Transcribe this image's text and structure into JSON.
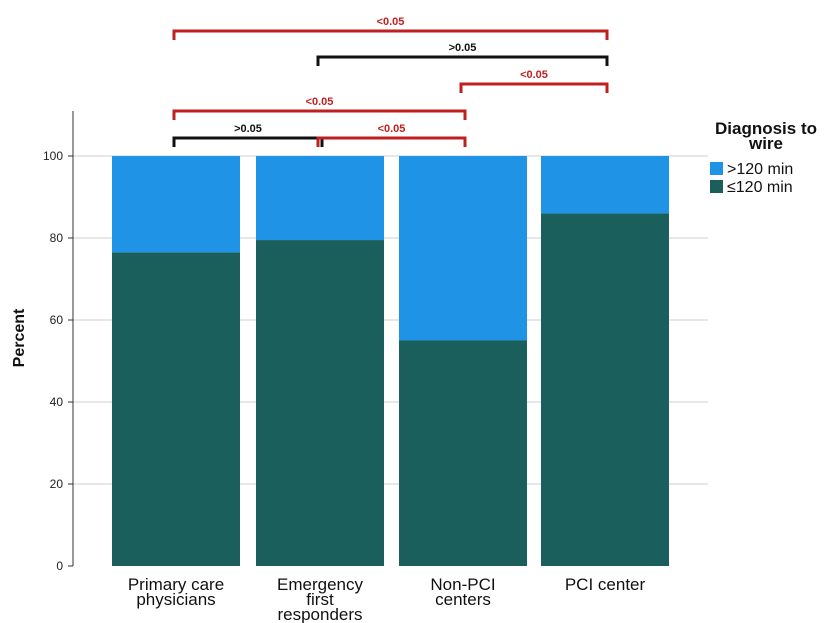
{
  "chart_data": {
    "type": "bar",
    "stacked": true,
    "ylabel": "Percent",
    "xlabel": "",
    "ylim": [
      0,
      100
    ],
    "yticks": [
      0,
      20,
      40,
      60,
      80,
      100
    ],
    "grid": true,
    "categories": [
      [
        "Primary care",
        "physicians"
      ],
      [
        "Emergency",
        "first",
        "responders"
      ],
      [
        "Non-PCI",
        "centers"
      ],
      [
        "PCI center"
      ]
    ],
    "series": [
      {
        "name": "≤120 min",
        "color": "#1a5f5b",
        "values": [
          76.5,
          79.5,
          55.0,
          86.0
        ]
      },
      {
        "name": ">120 min",
        "color": "#1f94e6",
        "values": [
          23.5,
          20.5,
          45.0,
          14.0
        ]
      }
    ],
    "legend": {
      "title_lines": [
        "Diagnosis to",
        "wire"
      ],
      "placement": "top-right",
      "entries": [
        {
          "label": ">120 min",
          "color": "#1f94e6"
        },
        {
          "label": "≤120 min",
          "color": "#1a5f5b"
        }
      ]
    },
    "significance": [
      {
        "from": 0,
        "to": 3,
        "label": "<0.05",
        "color": "#c01f1f"
      },
      {
        "from": 1,
        "to": 3,
        "label": ">0.05",
        "color": "#111111"
      },
      {
        "from": 2,
        "to": 3,
        "label": "<0.05",
        "color": "#c01f1f"
      },
      {
        "from": 0,
        "to": 2,
        "label": "<0.05",
        "color": "#c01f1f"
      },
      {
        "from": 0,
        "to": 1,
        "label": ">0.05",
        "color": "#111111"
      },
      {
        "from": 1,
        "to": 2,
        "label": "<0.05",
        "color": "#c01f1f"
      }
    ]
  }
}
